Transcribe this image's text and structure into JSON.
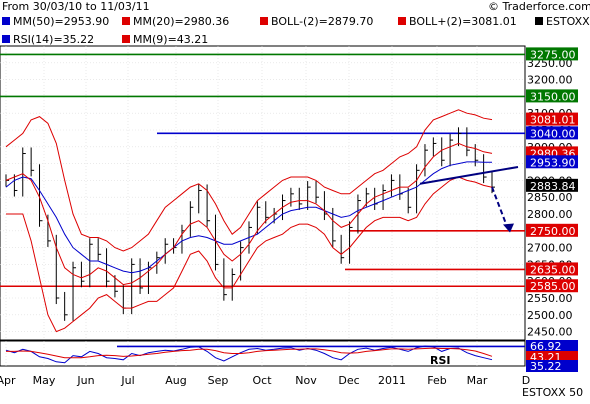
{
  "header": {
    "range_label": "From 30/03/10 to 11/03/11",
    "copyright": "© Traderforce.com"
  },
  "chart_data": [
    {
      "type": "line",
      "title": "",
      "instrument": "ESTOXX 50",
      "legend_position": "top",
      "legend": [
        {
          "label": "MM(50)=2953.90",
          "color": "#0000cc"
        },
        {
          "label": "MM(20)=2980.36",
          "color": "#dd0000"
        },
        {
          "label": "BOLL-(2)=2879.70",
          "color": "#dd0000"
        },
        {
          "label": "BOLL+(2)=3081.01",
          "color": "#dd0000"
        },
        {
          "label": "ESTOXX 50",
          "color": "#000000"
        }
      ],
      "ylim": [
        2425,
        3300
      ],
      "y_ticks": [
        2450,
        2500,
        2550,
        2600,
        2650,
        2700,
        2750,
        2800,
        2850,
        2900,
        2950,
        3000,
        3050,
        3100,
        3150,
        3200,
        3250
      ],
      "x_ticks": [
        "Apr",
        "May",
        "Jun",
        "Jul",
        "Aug",
        "Sep",
        "Oct",
        "Nov",
        "Dec",
        "2011",
        "Feb",
        "Mar",
        "D"
      ],
      "grid": true,
      "series": [
        {
          "name": "ESTOXX 50",
          "color": "#000000",
          "style": "ohlc",
          "values": [
            2900,
            2870,
            2980,
            2930,
            2780,
            2720,
            2550,
            2500,
            2640,
            2600,
            2710,
            2680,
            2600,
            2570,
            2520,
            2650,
            2580,
            2640,
            2670,
            2710,
            2700,
            2750,
            2820,
            2870,
            2780,
            2650,
            2560,
            2620,
            2700,
            2760,
            2820,
            2790,
            2800,
            2840,
            2860,
            2830,
            2880,
            2850,
            2800,
            2720,
            2670,
            2760,
            2840,
            2860,
            2830,
            2870,
            2900,
            2860,
            2820,
            2930,
            2990,
            3010,
            2960,
            3020,
            3040,
            2990,
            2960,
            2910,
            2880
          ]
        },
        {
          "name": "MM(50)",
          "color": "#0000cc",
          "values": [
            2880,
            2900,
            2910,
            2905,
            2870,
            2830,
            2790,
            2740,
            2700,
            2680,
            2660,
            2660,
            2650,
            2640,
            2630,
            2625,
            2630,
            2640,
            2660,
            2680,
            2700,
            2720,
            2730,
            2735,
            2730,
            2720,
            2710,
            2710,
            2720,
            2730,
            2740,
            2760,
            2780,
            2800,
            2810,
            2815,
            2820,
            2820,
            2810,
            2800,
            2790,
            2795,
            2810,
            2820,
            2830,
            2840,
            2850,
            2860,
            2870,
            2880,
            2900,
            2920,
            2935,
            2945,
            2950,
            2955,
            2955,
            2954,
            2953.9
          ]
        },
        {
          "name": "MM(20)",
          "color": "#dd0000",
          "values": [
            2900,
            2910,
            2920,
            2900,
            2850,
            2780,
            2700,
            2640,
            2620,
            2610,
            2620,
            2640,
            2630,
            2610,
            2590,
            2595,
            2610,
            2630,
            2650,
            2680,
            2700,
            2740,
            2770,
            2780,
            2760,
            2720,
            2680,
            2660,
            2680,
            2710,
            2750,
            2780,
            2800,
            2820,
            2835,
            2840,
            2840,
            2830,
            2810,
            2780,
            2760,
            2770,
            2800,
            2830,
            2850,
            2860,
            2870,
            2880,
            2880,
            2900,
            2940,
            2970,
            2990,
            3000,
            3010,
            3000,
            2995,
            2985,
            2980.36
          ]
        },
        {
          "name": "BOLL+(2)",
          "color": "#dd0000",
          "values": [
            3000,
            3020,
            3040,
            3080,
            3090,
            3070,
            3010,
            2900,
            2800,
            2740,
            2730,
            2730,
            2720,
            2700,
            2690,
            2700,
            2720,
            2740,
            2780,
            2820,
            2840,
            2860,
            2880,
            2890,
            2870,
            2830,
            2780,
            2740,
            2760,
            2800,
            2840,
            2860,
            2880,
            2900,
            2910,
            2910,
            2910,
            2900,
            2880,
            2870,
            2860,
            2860,
            2880,
            2900,
            2920,
            2930,
            2950,
            2970,
            2980,
            3000,
            3050,
            3080,
            3090,
            3100,
            3110,
            3100,
            3095,
            3085,
            3081.01
          ]
        },
        {
          "name": "BOLL-(2)",
          "color": "#dd0000",
          "values": [
            2800,
            2800,
            2800,
            2720,
            2610,
            2500,
            2450,
            2460,
            2480,
            2500,
            2520,
            2550,
            2560,
            2540,
            2520,
            2520,
            2530,
            2540,
            2540,
            2560,
            2580,
            2630,
            2680,
            2690,
            2660,
            2610,
            2580,
            2580,
            2620,
            2660,
            2700,
            2720,
            2730,
            2740,
            2760,
            2770,
            2770,
            2760,
            2740,
            2700,
            2680,
            2700,
            2730,
            2760,
            2780,
            2790,
            2790,
            2790,
            2780,
            2790,
            2830,
            2860,
            2880,
            2900,
            2910,
            2900,
            2895,
            2885,
            2879.7
          ]
        }
      ],
      "horizontal_levels": [
        {
          "value": 3275,
          "label": "3275.00",
          "color": "#007700"
        },
        {
          "value": 3150,
          "label": "3150.00",
          "color": "#007700"
        },
        {
          "value": 3081.01,
          "label": "3081.01",
          "color": "#dd0000"
        },
        {
          "value": 3040,
          "label": "3040.00",
          "color": "#0000cc"
        },
        {
          "value": 2980.36,
          "label": "2980.36",
          "color": "#dd0000"
        },
        {
          "value": 2953.9,
          "label": "2953.90",
          "color": "#0000cc"
        },
        {
          "value": 2883.84,
          "label": "2883.84",
          "color": "#000000"
        },
        {
          "value": 2750,
          "label": "2750.00",
          "color": "#dd0000"
        },
        {
          "value": 2635,
          "label": "2635.00",
          "color": "#dd0000"
        },
        {
          "value": 2585,
          "label": "2585.00",
          "color": "#dd0000"
        }
      ]
    },
    {
      "type": "line",
      "title": "",
      "panel_label": "RSI",
      "legend": [
        {
          "label": "RSI(14)=35.22",
          "color": "#0000cc"
        },
        {
          "label": "MM(9)=43.21",
          "color": "#dd0000"
        }
      ],
      "series": [
        {
          "name": "RSI(14)",
          "color": "#0000cc",
          "values": [
            58,
            52,
            60,
            55,
            42,
            38,
            30,
            28,
            45,
            42,
            55,
            50,
            40,
            38,
            35,
            50,
            45,
            52,
            55,
            58,
            56,
            60,
            65,
            66,
            55,
            40,
            32,
            42,
            52,
            60,
            62,
            58,
            60,
            63,
            64,
            58,
            62,
            58,
            50,
            40,
            35,
            50,
            60,
            63,
            58,
            62,
            65,
            60,
            55,
            64,
            68,
            66,
            55,
            62,
            63,
            52,
            45,
            40,
            35.22
          ]
        },
        {
          "name": "MM(9)",
          "color": "#dd0000",
          "values": [
            55,
            55,
            56,
            55,
            52,
            48,
            44,
            40,
            40,
            40,
            42,
            45,
            46,
            45,
            43,
            44,
            46,
            48,
            50,
            53,
            55,
            57,
            58,
            60,
            60,
            57,
            52,
            50,
            50,
            52,
            55,
            57,
            58,
            59,
            60,
            60,
            61,
            61,
            59,
            56,
            52,
            51,
            52,
            55,
            57,
            59,
            61,
            61,
            60,
            61,
            62,
            63,
            62,
            62,
            61,
            59,
            56,
            50,
            43.21
          ]
        }
      ],
      "horizontal_levels": [
        {
          "value": 66.92,
          "label": "66.92",
          "color": "#0000cc"
        },
        {
          "value": 43.21,
          "label": "43.21",
          "color": "#dd0000"
        },
        {
          "value": 35.22,
          "label": "35.22",
          "color": "#0000cc"
        }
      ]
    }
  ]
}
